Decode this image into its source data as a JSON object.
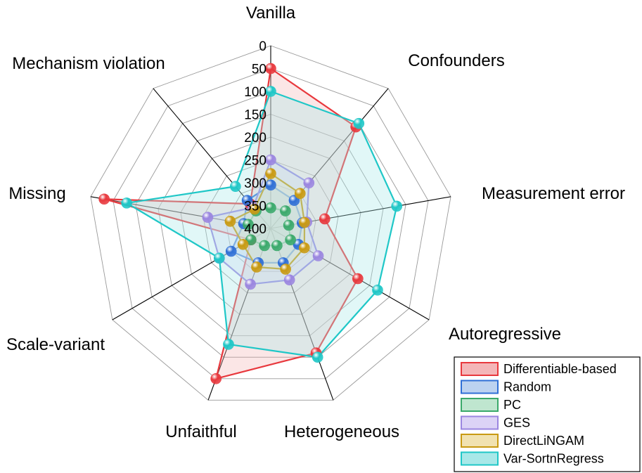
{
  "chart_data": {
    "type": "radar",
    "categories": [
      "Vanilla",
      "Confounders",
      "Measurement error",
      "Autoregressive",
      "Heterogeneous",
      "Unfaithful",
      "Scale-variant",
      "Missing",
      "Mechanism violation"
    ],
    "ticks": [
      "0",
      "50",
      "100",
      "150",
      "200",
      "250",
      "300",
      "350",
      "400"
    ],
    "rlim": [
      0,
      400
    ],
    "direction": "inverted (0 at rim, 400 at center)",
    "grid": true,
    "legend_position": "bottom-right",
    "series": [
      {
        "name": "Differentiable-based",
        "color": "#e8383d",
        "fill": "#f4b6b8",
        "values": [
          50,
          110,
          280,
          180,
          110,
          50,
          350,
          30,
          330
        ]
      },
      {
        "name": "Random",
        "color": "#2f6fd6",
        "fill": "#bcd2f0",
        "values": [
          305,
          320,
          330,
          330,
          320,
          320,
          300,
          340,
          320
        ]
      },
      {
        "name": "PC",
        "color": "#3aa96b",
        "fill": "#bfe6cf",
        "values": [
          355,
          350,
          360,
          350,
          360,
          360,
          350,
          350,
          350
        ]
      },
      {
        "name": "GES",
        "color": "#9b86e0",
        "fill": "#dcd3f6",
        "values": [
          250,
          270,
          320,
          280,
          280,
          270,
          270,
          260,
          340
        ]
      },
      {
        "name": "DirectLiNGAM",
        "color": "#c99a12",
        "fill": "#f1e2b0",
        "values": [
          280,
          300,
          325,
          315,
          305,
          310,
          330,
          310,
          345
        ]
      },
      {
        "name": "Var-SortnRegress",
        "color": "#1fc7c7",
        "fill": "#a8e8e8",
        "values": [
          100,
          100,
          120,
          130,
          100,
          130,
          270,
          80,
          280
        ]
      }
    ]
  }
}
